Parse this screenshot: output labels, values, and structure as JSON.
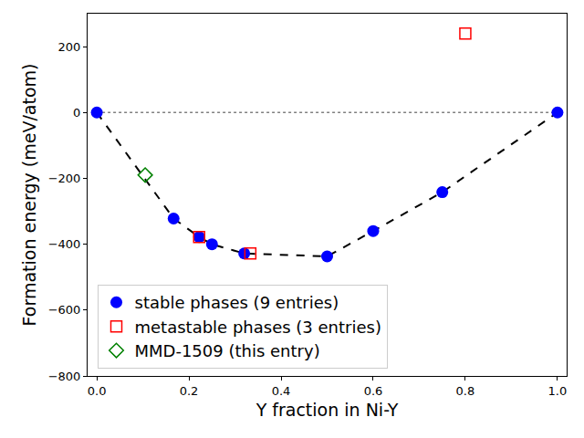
{
  "chart_data": {
    "type": "scatter",
    "x_label": "Y fraction in Ni-Y",
    "y_label": "Formation energy (meV/atom)",
    "xlim": [
      -0.02,
      1.02
    ],
    "xticks": [
      {
        "value": 0,
        "label": "0.0"
      },
      {
        "value": 0.2,
        "label": "0.2"
      },
      {
        "value": 0.4,
        "label": "0.4"
      },
      {
        "value": 0.6,
        "label": "0.6"
      },
      {
        "value": 0.8,
        "label": "0.8"
      },
      {
        "value": 1,
        "label": "1.0"
      }
    ],
    "ylim": [
      -800,
      300
    ],
    "yticks": [
      {
        "value": -800,
        "label": "−800"
      },
      {
        "value": -600,
        "label": "−600"
      },
      {
        "value": -400,
        "label": "−400"
      },
      {
        "value": -200,
        "label": "−200"
      },
      0,
      200
    ],
    "grid": false,
    "legend": "lower left",
    "reference_lines": [
      {
        "y": 0,
        "x": [
          0,
          1
        ],
        "line_style": "dotted",
        "color": "gray"
      }
    ],
    "series": [
      {
        "name": "stable phases (9 entries)",
        "color": "#0000ff",
        "marker": "circle",
        "line_style": "dashed",
        "line_color": "#000000",
        "x": [
          0,
          0.1667,
          0.2222,
          0.25,
          0.32,
          0.5,
          0.6,
          0.75,
          1
        ],
        "values": [
          0,
          -322,
          -378,
          -400,
          -428,
          -437,
          -360,
          -242,
          0
        ]
      },
      {
        "name": "metastable phases (3 entries)",
        "color": "#ff0000",
        "marker": "square-open",
        "x": [
          0.2222,
          0.3333,
          0.8
        ],
        "values": [
          -378,
          -428,
          240
        ]
      },
      {
        "name": "MMD-1509 (this entry)",
        "color": "#008000",
        "marker": "diamond-open",
        "x": [
          0.105
        ],
        "values": [
          -190
        ]
      }
    ]
  }
}
